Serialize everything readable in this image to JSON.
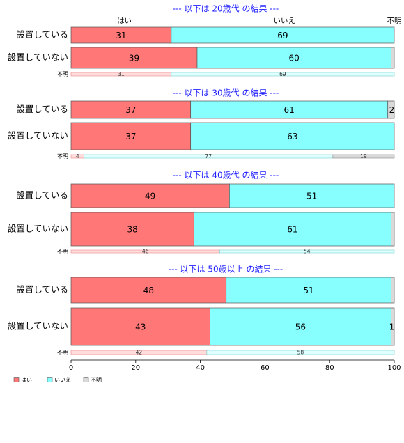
{
  "colors": {
    "hai": "#ff7777",
    "iie": "#88ffff",
    "fumei": "#d9d9d9",
    "hai_light": "#ffdddd",
    "iie_light": "#e0ffff",
    "fumei_light": "#efefef",
    "title": "#1f1fff"
  },
  "chart_data": {
    "type": "bar",
    "orientation": "horizontal-stacked",
    "xlim": [
      0,
      100
    ],
    "xticks": [
      "0",
      "20",
      "40",
      "60",
      "80",
      "100"
    ],
    "column_headers": [
      "はい",
      "いいえ",
      "不明"
    ],
    "legend": {
      "placement": "bottom-left",
      "labels": [
        "はい",
        "いいえ",
        "不明"
      ]
    },
    "panels": [
      {
        "title": "--- 以下は 20歳代 の結果 ---",
        "rows": [
          {
            "label": "設置している",
            "values": [
              31,
              69,
              0
            ],
            "labels": [
              "31",
              "69",
              ""
            ]
          },
          {
            "label": "設置していない",
            "values": [
              39,
              60,
              1
            ],
            "labels": [
              "39",
              "60",
              ""
            ]
          }
        ],
        "unknown": {
          "label": "不明",
          "values": [
            31,
            69,
            0
          ],
          "labels": [
            "31",
            "69",
            ""
          ]
        }
      },
      {
        "title": "--- 以下は 30歳代 の結果 ---",
        "rows": [
          {
            "label": "設置している",
            "values": [
              37,
              61,
              2
            ],
            "labels": [
              "37",
              "61",
              "2"
            ]
          },
          {
            "label": "設置していない",
            "values": [
              37,
              63,
              0
            ],
            "labels": [
              "37",
              "63",
              ""
            ]
          }
        ],
        "unknown": {
          "label": "不明",
          "values": [
            4,
            77,
            19
          ],
          "labels": [
            "4",
            "77",
            "19"
          ]
        }
      },
      {
        "title": "--- 以下は 40歳代 の結果 ---",
        "rows": [
          {
            "label": "設置している",
            "values": [
              49,
              51,
              0
            ],
            "labels": [
              "49",
              "51",
              ""
            ]
          },
          {
            "label": "設置していない",
            "values": [
              38,
              61,
              1
            ],
            "labels": [
              "38",
              "61",
              ""
            ]
          }
        ],
        "unknown": {
          "label": "不明",
          "values": [
            46,
            54,
            0
          ],
          "labels": [
            "46",
            "54",
            ""
          ]
        }
      },
      {
        "title": "--- 以下は 50歳以上 の結果 ---",
        "rows": [
          {
            "label": "設置している",
            "values": [
              48,
              51,
              1
            ],
            "labels": [
              "48",
              "51",
              ""
            ]
          },
          {
            "label": "設置していない",
            "values": [
              43,
              56,
              1
            ],
            "labels": [
              "43",
              "56",
              "1"
            ]
          }
        ],
        "unknown": {
          "label": "不明",
          "values": [
            42,
            58,
            0
          ],
          "labels": [
            "42",
            "58",
            ""
          ]
        }
      }
    ]
  }
}
